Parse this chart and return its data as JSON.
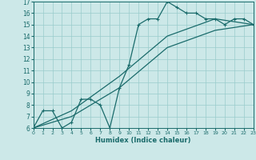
{
  "title": "",
  "xlabel": "Humidex (Indice chaleur)",
  "ylabel": "",
  "xlim": [
    0,
    23
  ],
  "ylim": [
    6,
    17
  ],
  "xticks": [
    0,
    1,
    2,
    3,
    4,
    5,
    6,
    7,
    8,
    9,
    10,
    11,
    12,
    13,
    14,
    15,
    16,
    17,
    18,
    19,
    20,
    21,
    22,
    23
  ],
  "yticks": [
    6,
    7,
    8,
    9,
    10,
    11,
    12,
    13,
    14,
    15,
    16,
    17
  ],
  "bg_color": "#cce8e8",
  "grid_color": "#99cccc",
  "line_color": "#1a6b6b",
  "line1_x": [
    0,
    1,
    2,
    3,
    4,
    5,
    6,
    7,
    8,
    9,
    10,
    11,
    12,
    13,
    14,
    15,
    16,
    17,
    18,
    19,
    20,
    21,
    22,
    23
  ],
  "line1_y": [
    6,
    7.5,
    7.5,
    6.0,
    6.5,
    8.5,
    8.5,
    8.0,
    6.0,
    9.5,
    11.5,
    15.0,
    15.5,
    15.5,
    17.0,
    16.5,
    16.0,
    16.0,
    15.5,
    15.5,
    15.0,
    15.5,
    15.5,
    15.0
  ],
  "line2_x": [
    0,
    23
  ],
  "line2_y": [
    6,
    15.0
  ],
  "line3_x": [
    0,
    23
  ],
  "line3_y": [
    6,
    15.0
  ],
  "line2_points_x": [
    0,
    4,
    9,
    14,
    19,
    23
  ],
  "line2_points_y": [
    6,
    7.5,
    10.5,
    14.0,
    15.5,
    15.0
  ],
  "line3_points_x": [
    0,
    4,
    9,
    14,
    19,
    23
  ],
  "line3_points_y": [
    6,
    7.0,
    9.5,
    13.0,
    14.5,
    15.0
  ]
}
